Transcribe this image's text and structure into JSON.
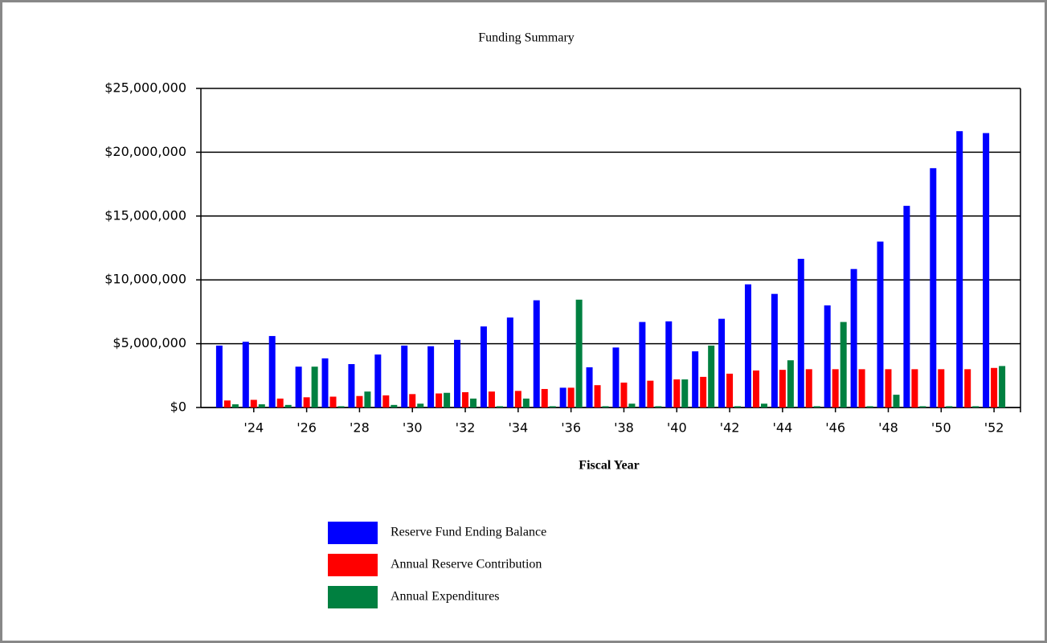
{
  "chart_data": {
    "type": "bar",
    "title": "Funding Summary",
    "x_label": "Fiscal Year",
    "categories": [
      null,
      "'24",
      null,
      "'26",
      null,
      "'28",
      null,
      "'30",
      null,
      "'32",
      null,
      "'34",
      null,
      "'36",
      null,
      "'38",
      null,
      "'40",
      null,
      "'42",
      null,
      "'44",
      null,
      "'46",
      null,
      "'48",
      null,
      "'50",
      null,
      "'52"
    ],
    "series": [
      {
        "name": "Reserve Fund Ending Balance",
        "color": "#0000ff",
        "values": [
          4850000,
          5150000,
          5600000,
          3200000,
          3850000,
          3400000,
          4150000,
          4850000,
          4800000,
          5300000,
          6350000,
          7050000,
          8400000,
          1550000,
          3150000,
          4700000,
          6700000,
          6750000,
          4400000,
          6950000,
          9650000,
          8900000,
          11650000,
          8000000,
          10850000,
          13000000,
          15800000,
          18750000,
          21650000,
          21500000
        ]
      },
      {
        "name": "Annual Reserve Contribution",
        "color": "#ff0000",
        "values": [
          550000,
          600000,
          700000,
          800000,
          850000,
          900000,
          950000,
          1050000,
          1100000,
          1200000,
          1250000,
          1300000,
          1450000,
          1550000,
          1750000,
          1950000,
          2100000,
          2200000,
          2400000,
          2650000,
          2900000,
          2950000,
          3000000,
          3000000,
          3000000,
          3000000,
          3000000,
          3000000,
          3000000,
          3100000
        ]
      },
      {
        "name": "Annual Expenditures",
        "color": "#008040",
        "values": [
          250000,
          250000,
          200000,
          3200000,
          100000,
          1250000,
          200000,
          300000,
          1150000,
          700000,
          100000,
          700000,
          100000,
          8450000,
          100000,
          300000,
          100000,
          2200000,
          4850000,
          100000,
          300000,
          3700000,
          100000,
          6700000,
          100000,
          1000000,
          100000,
          100000,
          100000,
          3250000
        ]
      }
    ],
    "ylim": [
      0,
      25000000
    ],
    "yticks": [
      {
        "value": 0,
        "label": "$0"
      },
      {
        "value": 5000000,
        "label": "$5,000,000"
      },
      {
        "value": 10000000,
        "label": "$10,000,000"
      },
      {
        "value": 15000000,
        "label": "$15,000,000"
      },
      {
        "value": 20000000,
        "label": "$20,000,000"
      },
      {
        "value": 25000000,
        "label": "$25,000,000"
      }
    ],
    "grid": true
  }
}
